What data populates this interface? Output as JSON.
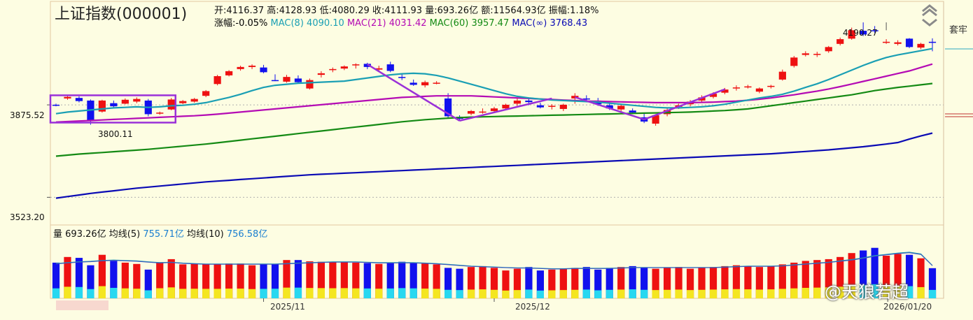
{
  "header": {
    "title": "上证指数(000001)",
    "open_label": "开:",
    "open": "4116.37",
    "high_label": "高:",
    "high": "4128.93",
    "low_label": "低:",
    "low": "4080.29",
    "close_label": "收:",
    "close": "4111.93",
    "vol_label": "量:",
    "vol": "693.26亿",
    "amt_label": "额:",
    "amt": "11564.93亿",
    "amp_label": "振幅:",
    "amp": "1.18%",
    "chg_label": "涨幅:",
    "chg": "-0.05%",
    "ma1_label": "MAC(8)",
    "ma1": "4090.10",
    "ma2_label": "MAC(21)",
    "ma2": "4031.42",
    "ma3_label": "MAC(60)",
    "ma3": "3957.47",
    "ma4_label": "MAC(∞)",
    "ma4": "3768.43"
  },
  "volume_header": {
    "label": "量",
    "value": "693.26亿",
    "ma5_label": "均线(5)",
    "ma5": "755.71亿",
    "ma10_label": "均线(10)",
    "ma10": "756.58亿"
  },
  "side_tab": "套牢",
  "watermark": "@天狼若超",
  "colors": {
    "up": "#ee1111",
    "down": "#1111ee",
    "ma8": "#1a9fb4",
    "ma21": "#b40ab4",
    "ma60": "#148a14",
    "mainf": "#0a0ab4",
    "annot": "#9a30d8"
  },
  "chart_data": {
    "type": "candlestick",
    "ylim": [
      3423,
      4270
    ],
    "y_ticks": [
      {
        "value": 3875.52,
        "label": "3875.52"
      },
      {
        "value": 3523.2,
        "label": "3523.20"
      }
    ],
    "x_ticks": [
      {
        "index": 18,
        "label": "2025/11"
      },
      {
        "index": 38,
        "label": "2025/12"
      },
      {
        "index": 68,
        "label": "2026/01/20"
      }
    ],
    "annotations": {
      "high_label": "4190.27",
      "low_label": "3800.11"
    },
    "candles": [
      [
        3876,
        3880,
        3870,
        3874
      ],
      [
        3900,
        3910,
        3895,
        3906
      ],
      [
        3902,
        3908,
        3885,
        3890
      ],
      [
        3892,
        3896,
        3800,
        3815
      ],
      [
        3850,
        3895,
        3846,
        3892
      ],
      [
        3882,
        3892,
        3865,
        3870
      ],
      [
        3880,
        3900,
        3878,
        3895
      ],
      [
        3888,
        3904,
        3882,
        3898
      ],
      [
        3892,
        3898,
        3832,
        3840
      ],
      [
        3842,
        3850,
        3838,
        3846
      ],
      [
        3858,
        3902,
        3855,
        3896
      ],
      [
        3882,
        3894,
        3878,
        3890
      ],
      [
        3888,
        3902,
        3884,
        3898
      ],
      [
        3910,
        3932,
        3905,
        3928
      ],
      [
        3955,
        3990,
        3950,
        3985
      ],
      [
        3988,
        4008,
        3984,
        4004
      ],
      [
        4012,
        4025,
        4006,
        4020
      ],
      [
        4020,
        4030,
        4012,
        4025
      ],
      [
        4018,
        4028,
        3996,
        4000
      ],
      [
        3970,
        3992,
        3966,
        3968
      ],
      [
        3964,
        3990,
        3960,
        3982
      ],
      [
        3976,
        3988,
        3958,
        3962
      ],
      [
        3938,
        3976,
        3934,
        3970
      ],
      [
        3990,
        4004,
        3980,
        3996
      ],
      [
        4008,
        4018,
        4000,
        4012
      ],
      [
        4014,
        4026,
        4008,
        4022
      ],
      [
        4026,
        4034,
        4014,
        4030
      ],
      [
        4032,
        4036,
        4012,
        4020
      ],
      [
        4010,
        4025,
        4005,
        4015
      ],
      [
        4030,
        4040,
        4000,
        4005
      ],
      [
        3982,
        3992,
        3970,
        3978
      ],
      [
        3960,
        3972,
        3948,
        3952
      ],
      [
        3950,
        3968,
        3942,
        3962
      ],
      [
        3958,
        3966,
        3954,
        3960
      ],
      [
        3900,
        3920,
        3826,
        3832
      ],
      [
        3830,
        3836,
        3814,
        3822
      ],
      [
        3842,
        3856,
        3836,
        3852
      ],
      [
        3848,
        3862,
        3842,
        3850
      ],
      [
        3852,
        3868,
        3846,
        3862
      ],
      [
        3862,
        3880,
        3856,
        3876
      ],
      [
        3880,
        3900,
        3872,
        3892
      ],
      [
        3892,
        3904,
        3874,
        3886
      ],
      [
        3874,
        3884,
        3862,
        3866
      ],
      [
        3868,
        3878,
        3858,
        3872
      ],
      [
        3860,
        3880,
        3852,
        3876
      ],
      [
        3900,
        3920,
        3880,
        3910
      ],
      [
        3900,
        3912,
        3886,
        3896
      ],
      [
        3892,
        3902,
        3872,
        3878
      ],
      [
        3874,
        3884,
        3856,
        3862
      ],
      [
        3858,
        3876,
        3850,
        3872
      ],
      [
        3854,
        3862,
        3842,
        3846
      ],
      [
        3828,
        3842,
        3806,
        3812
      ],
      [
        3804,
        3840,
        3796,
        3836
      ],
      [
        3840,
        3862,
        3832,
        3856
      ],
      [
        3868,
        3880,
        3860,
        3874
      ],
      [
        3878,
        3894,
        3870,
        3888
      ],
      [
        3892,
        3912,
        3884,
        3904
      ],
      [
        3906,
        3924,
        3900,
        3918
      ],
      [
        3922,
        3940,
        3916,
        3934
      ],
      [
        3938,
        3950,
        3930,
        3942
      ],
      [
        3944,
        3952,
        3938,
        3946
      ],
      [
        3926,
        3942,
        3920,
        3938
      ],
      [
        3944,
        3952,
        3938,
        3948
      ],
      [
        3972,
        4010,
        3968,
        4002
      ],
      [
        4024,
        4062,
        4018,
        4056
      ],
      [
        4066,
        4080,
        4060,
        4072
      ],
      [
        4066,
        4078,
        4058,
        4070
      ],
      [
        4080,
        4100,
        4074,
        4096
      ],
      [
        4108,
        4132,
        4102,
        4126
      ],
      [
        4128,
        4170,
        4124,
        4160
      ],
      [
        4158,
        4190,
        4138,
        4144
      ],
      [
        4160,
        4176,
        4150,
        4156
      ],
      [
        4112,
        4126,
        4108,
        4116
      ],
      [
        4108,
        4122,
        4102,
        4114
      ],
      [
        4128,
        4130,
        4092,
        4096
      ],
      [
        4094,
        4112,
        4088,
        4108
      ],
      [
        4116,
        4129,
        4080,
        4112
      ]
    ],
    "ma8": [
      3842,
      3848,
      3852,
      3856,
      3860,
      3864,
      3866,
      3868,
      3866,
      3868,
      3872,
      3874,
      3878,
      3884,
      3894,
      3904,
      3916,
      3930,
      3942,
      3950,
      3954,
      3958,
      3960,
      3962,
      3964,
      3966,
      3972,
      3978,
      3984,
      3990,
      3994,
      3996,
      3994,
      3988,
      3978,
      3966,
      3954,
      3942,
      3930,
      3918,
      3908,
      3902,
      3898,
      3894,
      3892,
      3890,
      3888,
      3886,
      3882,
      3878,
      3874,
      3870,
      3866,
      3864,
      3864,
      3866,
      3868,
      3872,
      3878,
      3886,
      3894,
      3902,
      3908,
      3916,
      3928,
      3942,
      3956,
      3972,
      3990,
      4008,
      4026,
      4042,
      4056,
      4066,
      4074,
      4082,
      4090
    ],
    "ma21": [
      3810,
      3812,
      3814,
      3816,
      3818,
      3820,
      3822,
      3824,
      3826,
      3828,
      3830,
      3832,
      3834,
      3837,
      3840,
      3844,
      3848,
      3852,
      3856,
      3860,
      3864,
      3868,
      3872,
      3876,
      3880,
      3884,
      3888,
      3892,
      3896,
      3900,
      3904,
      3906,
      3908,
      3910,
      3910,
      3910,
      3910,
      3908,
      3906,
      3904,
      3902,
      3900,
      3898,
      3896,
      3894,
      3892,
      3890,
      3889,
      3888,
      3887,
      3886,
      3885,
      3884,
      3884,
      3884,
      3884,
      3885,
      3886,
      3888,
      3890,
      3893,
      3897,
      3902,
      3908,
      3914,
      3921,
      3928,
      3936,
      3945,
      3955,
      3965,
      3975,
      3985,
      3995,
      4005,
      4018,
      4031
    ],
    "ma60": [
      3680,
      3684,
      3688,
      3691,
      3694,
      3697,
      3700,
      3703,
      3706,
      3710,
      3714,
      3718,
      3722,
      3726,
      3731,
      3736,
      3741,
      3746,
      3751,
      3756,
      3761,
      3766,
      3771,
      3776,
      3781,
      3786,
      3791,
      3796,
      3801,
      3806,
      3811,
      3815,
      3819,
      3822,
      3825,
      3827,
      3829,
      3830,
      3831,
      3832,
      3833,
      3834,
      3835,
      3836,
      3837,
      3838,
      3839,
      3840,
      3841,
      3842,
      3843,
      3844,
      3845,
      3846,
      3847,
      3848,
      3850,
      3852,
      3854,
      3857,
      3860,
      3866,
      3872,
      3878,
      3884,
      3890,
      3896,
      3902,
      3908,
      3914,
      3922,
      3930,
      3936,
      3942,
      3947,
      3952,
      3957
    ],
    "mainf": [
      3520,
      3526,
      3532,
      3538,
      3543,
      3548,
      3553,
      3558,
      3562,
      3566,
      3570,
      3574,
      3578,
      3582,
      3585,
      3588,
      3591,
      3594,
      3597,
      3600,
      3603,
      3606,
      3609,
      3611,
      3613,
      3615,
      3617,
      3619,
      3621,
      3623,
      3625,
      3627,
      3629,
      3631,
      3633,
      3635,
      3637,
      3639,
      3641,
      3643,
      3645,
      3647,
      3649,
      3651,
      3653,
      3655,
      3657,
      3659,
      3661,
      3663,
      3665,
      3667,
      3669,
      3671,
      3673,
      3675,
      3677,
      3679,
      3681,
      3683,
      3685,
      3687,
      3689,
      3692,
      3695,
      3698,
      3701,
      3704,
      3708,
      3712,
      3716,
      3721,
      3726,
      3732,
      3745,
      3757,
      3768
    ],
    "volumes": [
      820,
      950,
      930,
      760,
      1000,
      860,
      820,
      790,
      660,
      830,
      900,
      780,
      790,
      780,
      780,
      800,
      800,
      760,
      780,
      790,
      880,
      880,
      850,
      840,
      830,
      840,
      820,
      810,
      790,
      810,
      840,
      820,
      800,
      780,
      700,
      680,
      720,
      740,
      700,
      640,
      680,
      720,
      640,
      660,
      680,
      700,
      720,
      660,
      700,
      720,
      740,
      700,
      680,
      700,
      720,
      680,
      700,
      720,
      740,
      760,
      740,
      720,
      740,
      780,
      820,
      860,
      880,
      900,
      950,
      1040,
      1100,
      1160,
      980,
      1020,
      1000,
      920,
      693
    ],
    "vol_ma5": [
      800,
      820,
      840,
      850,
      870,
      880,
      870,
      860,
      840,
      820,
      830,
      810,
      800,
      790,
      790,
      790,
      790,
      790,
      790,
      790,
      800,
      810,
      820,
      830,
      840,
      840,
      840,
      830,
      820,
      820,
      820,
      820,
      810,
      800,
      780,
      760,
      740,
      730,
      720,
      710,
      700,
      700,
      690,
      680,
      680,
      690,
      690,
      690,
      690,
      700,
      710,
      710,
      710,
      710,
      710,
      710,
      710,
      710,
      720,
      730,
      740,
      740,
      740,
      750,
      770,
      790,
      810,
      830,
      860,
      890,
      930,
      980,
      1010,
      1040,
      1060,
      1020,
      756
    ]
  }
}
